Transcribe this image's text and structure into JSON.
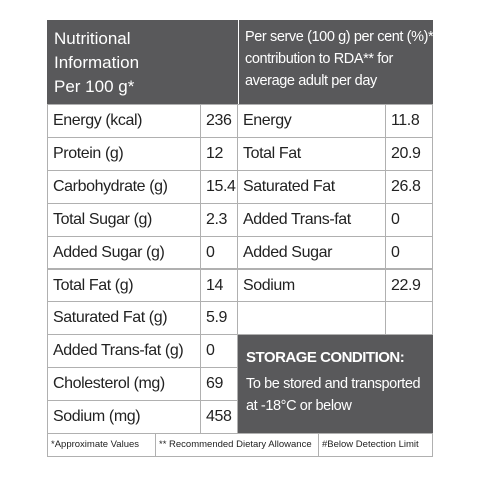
{
  "header": {
    "left_title": [
      "Nutritional",
      "Information",
      "Per 100 g*"
    ],
    "right_title": [
      "Per serve (100 g) per cent (%)*",
      "contribution to RDA** for",
      "average adult per day"
    ]
  },
  "left_rows": [
    [
      "Energy (kcal)",
      236
    ],
    [
      "Protein (g)",
      12
    ],
    [
      "Carbohydrate (g)",
      15.4
    ],
    [
      "Total Sugar (g)",
      2.3
    ],
    [
      "Added Sugar (g)",
      0
    ],
    [
      "Total Fat (g)",
      14
    ],
    [
      "Saturated Fat (g)",
      5.9
    ],
    [
      "Added Trans-fat (g)",
      0
    ],
    [
      "Cholesterol (mg)",
      69
    ],
    [
      "Sodium (mg)",
      458
    ]
  ],
  "right_rows": [
    [
      "Energy",
      11.8
    ],
    [
      "Total Fat",
      20.9
    ],
    [
      "Saturated Fat",
      26.8
    ],
    [
      "Added Trans-fat",
      0
    ],
    [
      "Added Sugar",
      0
    ],
    [
      "Sodium",
      22.9
    ]
  ],
  "storage": {
    "title": "STORAGE CONDITION:",
    "lines": [
      "To be stored and transported",
      "at -18°C or below"
    ]
  },
  "footer": [
    "*Approximate Values",
    "** Recommended Dietary Allowance",
    "#Below Detection Limit"
  ]
}
